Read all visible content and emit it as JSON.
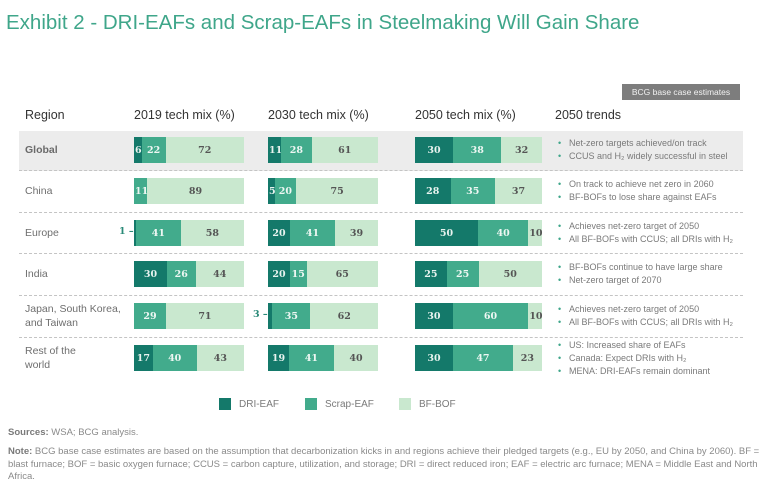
{
  "title": "Exhibit 2 - DRI-EAFs and Scrap-EAFs in Steelmaking Will Gain Share",
  "badge": "BCG base case estimates",
  "headers": {
    "region": "Region",
    "mix_2019": "2019 tech mix (%)",
    "mix_2030": "2030 tech mix (%)",
    "mix_2050": "2050 tech mix (%)",
    "trends": "2050 trends"
  },
  "colors": {
    "dri_eaf": "#14796a",
    "scrap_eaf": "#42ab8c",
    "bf_bof": "#c9e8cf",
    "title": "#3fa68a"
  },
  "legend": {
    "dri_eaf": "DRI-EAF",
    "scrap_eaf": "Scrap-EAF",
    "bf_bof": "BF-BOF"
  },
  "chart_data": {
    "type": "bar",
    "orientation": "horizontal-stacked-100",
    "title": "Exhibit 2 - DRI-EAFs and Scrap-EAFs in Steelmaking Will Gain Share",
    "series_names": [
      "DRI-EAF",
      "Scrap-EAF",
      "BF-BOF"
    ],
    "periods": [
      "2019",
      "2030",
      "2050"
    ],
    "categories": [
      "Global",
      "China",
      "Europe",
      "India",
      "Japan, South Korea, and Taiwan",
      "Rest of the world"
    ],
    "rows": [
      {
        "region": "Global",
        "2019": [
          6,
          22,
          72
        ],
        "2030": [
          11,
          28,
          61
        ],
        "2050": [
          30,
          38,
          32
        ],
        "trends": [
          "Net-zero targets achieved/on track",
          "CCUS and H₂ widely successful in steel"
        ]
      },
      {
        "region": "China",
        "2019": [
          0,
          11,
          89
        ],
        "2030": [
          5,
          20,
          75
        ],
        "2050": [
          28,
          35,
          37
        ],
        "trends": [
          "On track to achieve net zero in 2060",
          "BF-BOFs to lose share against EAFs"
        ]
      },
      {
        "region": "Europe",
        "2019": [
          1,
          41,
          58
        ],
        "2030": [
          20,
          41,
          39
        ],
        "2050": [
          50,
          40,
          10
        ],
        "trends": [
          "Achieves net-zero target of 2050",
          "All BF-BOFs with CCUS; all DRIs with H₂"
        ]
      },
      {
        "region": "India",
        "2019": [
          30,
          26,
          44
        ],
        "2030": [
          20,
          15,
          65
        ],
        "2050": [
          25,
          25,
          50
        ],
        "trends": [
          "BF-BOFs continue to have large share",
          "Net-zero target of 2070"
        ]
      },
      {
        "region": "Japan, South Korea, and Taiwan",
        "2019": [
          0,
          29,
          71
        ],
        "2030": [
          3,
          35,
          62
        ],
        "2050": [
          30,
          60,
          10
        ],
        "trends": [
          "Achieves net-zero target of 2050",
          "All BF-BOFs with CCUS; all DRIs with H₂"
        ]
      },
      {
        "region": "Rest of the world",
        "2019": [
          17,
          40,
          43
        ],
        "2030": [
          19,
          41,
          40
        ],
        "2050": [
          30,
          47,
          23
        ],
        "trends": [
          "US: Increased share of EAFs",
          "Canada: Expect DRIs with H₂",
          "MENA: DRI-EAFs remain dominant"
        ]
      }
    ],
    "xlim": [
      0,
      100
    ],
    "legend_position": "bottom"
  },
  "regions": [
    {
      "label_lines": [
        "Global"
      ]
    },
    {
      "label_lines": [
        "China"
      ]
    },
    {
      "label_lines": [
        "Europe"
      ]
    },
    {
      "label_lines": [
        "India"
      ]
    },
    {
      "label_lines": [
        "Japan, South Korea,",
        "and Taiwan"
      ]
    },
    {
      "label_lines": [
        "Rest of the",
        "world"
      ]
    }
  ],
  "footer": {
    "sources_label": "Sources:",
    "sources_text": " WSA; BCG analysis.",
    "note_label": "Note:",
    "note_text": " BCG base case estimates are based on the assumption that decarbonization kicks in and regions achieve their pledged targets (e.g., EU by 2050, and China by 2060). BF = blast furnace; BOF = basic oxygen furnace; CCUS = carbon capture, utilization, and storage; DRI = direct reduced iron; EAF = electric arc furnace; MENA = Middle East and North Africa."
  }
}
